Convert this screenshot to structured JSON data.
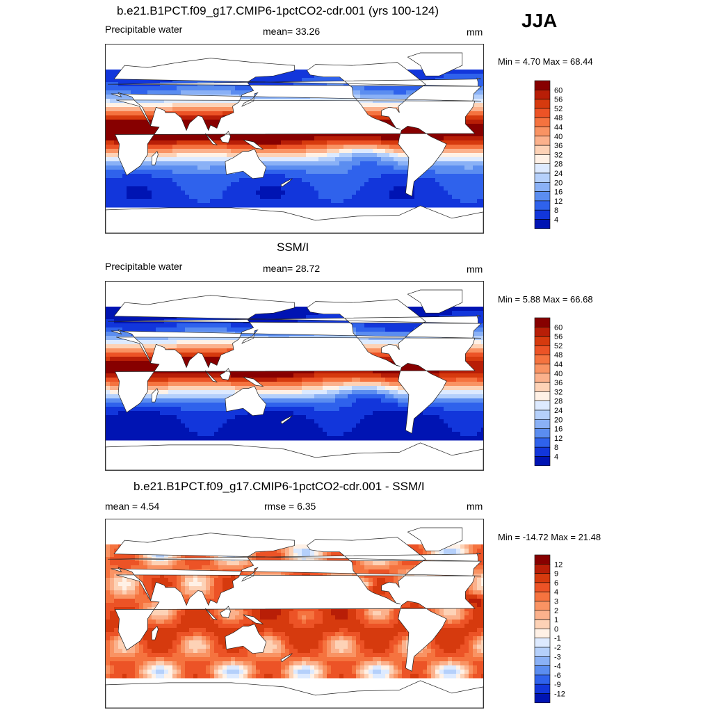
{
  "season": "JJA",
  "units_word": "mm",
  "panels": [
    {
      "id": "model",
      "title": "b.e21.B1PCT.f09_g17.CMIP6-1pctCO2-cdr.001 (yrs 100-124)",
      "variable": "Precipitable water",
      "stat": "mean=  33.26",
      "units": "mm",
      "minmax": "Min =   4.70 Max =  68.44",
      "kind": "abs"
    },
    {
      "id": "obs",
      "title": "SSM/I",
      "variable": "Precipitable water",
      "stat": "mean=  28.72",
      "units": "mm",
      "minmax": "Min =   5.88 Max =  66.68",
      "kind": "abs_obs"
    },
    {
      "id": "diff",
      "title": "b.e21.B1PCT.f09_g17.CMIP6-1pctCO2-cdr.001 - SSM/I",
      "variable": "mean =   4.54",
      "stat": "rmse =   6.35",
      "units": "mm",
      "minmax": "Min = -14.72 Max =  21.48",
      "kind": "diff"
    }
  ],
  "colorbars": {
    "abs": {
      "labels": [
        "60",
        "56",
        "52",
        "48",
        "44",
        "40",
        "36",
        "32",
        "28",
        "24",
        "20",
        "16",
        "12",
        "8",
        "4"
      ],
      "colors": [
        "#870000",
        "#b81e07",
        "#d63a0e",
        "#ec5326",
        "#f5733f",
        "#f99363",
        "#fbb18c",
        "#fdd2b6",
        "#fff1e6",
        "#ddeaff",
        "#b5d0fb",
        "#8ab1f6",
        "#5b8df0",
        "#2f62ec",
        "#1236db",
        "#0014b3"
      ]
    },
    "diff": {
      "labels": [
        "12",
        "9",
        "6",
        "4",
        "3",
        "2",
        "1",
        "0",
        "-1",
        "-2",
        "-3",
        "-4",
        "-6",
        "-9",
        "-12"
      ],
      "colors": [
        "#870000",
        "#b81e07",
        "#d63a0e",
        "#ec5326",
        "#f5733f",
        "#f99363",
        "#fbb18c",
        "#fdd2b6",
        "#fff1e6",
        "#ddeaff",
        "#b5d0fb",
        "#8ab1f6",
        "#5b8df0",
        "#2f62ec",
        "#1236db",
        "#0014b3"
      ]
    }
  }
}
